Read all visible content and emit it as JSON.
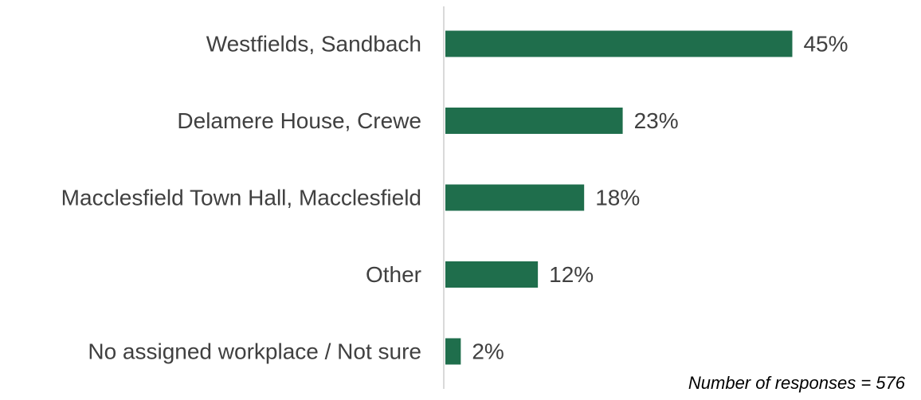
{
  "chart_data": {
    "type": "bar",
    "orientation": "horizontal",
    "categories": [
      "Westfields, Sandbach",
      "Delamere House, Crewe",
      "Macclesfield Town Hall, Macclesfield",
      "Other",
      "No assigned workplace / Not sure"
    ],
    "values": [
      45,
      23,
      18,
      12,
      2
    ],
    "value_labels": [
      "45%",
      "23%",
      "18%",
      "12%",
      "2%"
    ],
    "unit": "%",
    "xlim": [
      0,
      62
    ],
    "grid": false,
    "bar_color": "#1f6e4c",
    "axis_color": "#d9d9d9",
    "text_color": "#404040"
  },
  "footnote": "Number of responses = 576"
}
